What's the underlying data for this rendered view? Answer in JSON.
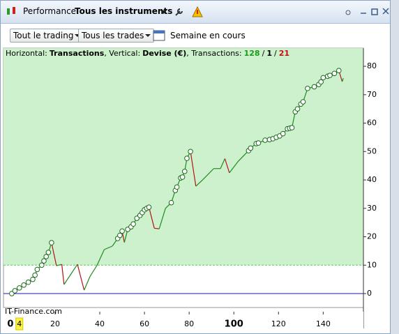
{
  "window": {
    "tabs": [
      "Performance",
      "Tous les instruments"
    ]
  },
  "toolbar": {
    "filter_1": "Tout le trading",
    "filter_2": "Tous les trades",
    "period": "Semaine en cours"
  },
  "chart_data": {
    "type": "line",
    "header": {
      "horizontal_label": "Horizontal:",
      "horizontal_value": "Transactions",
      "vertical_label": ", Vertical:",
      "vertical_value": "Devise (€)",
      "count_label": ", Transactions:",
      "winning": 128,
      "neutral": 1,
      "losing": 21,
      "separator": "/"
    },
    "watermark": "IT-Finance.com",
    "cursor_x": 4,
    "x": [
      0.6,
      2,
      4,
      6,
      8,
      10,
      11,
      12,
      14,
      15,
      16,
      17,
      18.4,
      20.6,
      23,
      24,
      30,
      33,
      35.6,
      38.8,
      42,
      45.6,
      48,
      49,
      50,
      51,
      52.5,
      54,
      55,
      56.6,
      58,
      59,
      60,
      61,
      62,
      64.4,
      66.6,
      69.4,
      72,
      73.8,
      74.5,
      76.2,
      77,
      78,
      79,
      80.6,
      83,
      86,
      91,
      94,
      96,
      98,
      102,
      106.6,
      107.5,
      110,
      111,
      114,
      116,
      117.5,
      119,
      120.5,
      122,
      124,
      125,
      126,
      127.5,
      128.5,
      130,
      131,
      133,
      136,
      138,
      139,
      140,
      142,
      143,
      145,
      147,
      148.5,
      149
    ],
    "values": [
      0,
      1,
      2,
      3,
      4,
      5,
      6.5,
      8.5,
      10,
      11.5,
      13,
      14.5,
      17.9,
      9.8,
      10.3,
      3.2,
      10.3,
      1.2,
      6,
      10,
      15.5,
      16.7,
      19.4,
      20.5,
      22,
      18,
      22.6,
      23.5,
      24.5,
      26.5,
      27.5,
      28.5,
      29.5,
      30,
      30.4,
      23,
      22.8,
      30,
      32,
      36.3,
      37.5,
      40.7,
      41,
      43,
      47.6,
      50,
      37.8,
      40,
      44,
      44,
      47.5,
      42.5,
      46.6,
      50.3,
      51.2,
      52.8,
      53,
      54,
      54.2,
      54.5,
      55,
      55.5,
      56.3,
      58,
      58.2,
      58.4,
      64,
      65,
      66.7,
      67.5,
      72.2,
      72.8,
      73.6,
      74.5,
      76,
      76.5,
      76.8,
      77.5,
      78.5,
      74.6,
      75.8
    ],
    "color_up": "#1e8c1e",
    "color_down": "#b01515",
    "zone_color": "#cdf1cd",
    "zone_level": 10,
    "zero_color": "#1a1ab0",
    "xlim": [
      -3.1,
      158
    ],
    "ylim": [
      -4.9,
      86.4
    ],
    "xticks": [
      0,
      20,
      40,
      60,
      80,
      100,
      120,
      140
    ],
    "yticks": [
      0,
      10,
      20,
      30,
      40,
      50,
      60,
      70,
      80
    ]
  }
}
